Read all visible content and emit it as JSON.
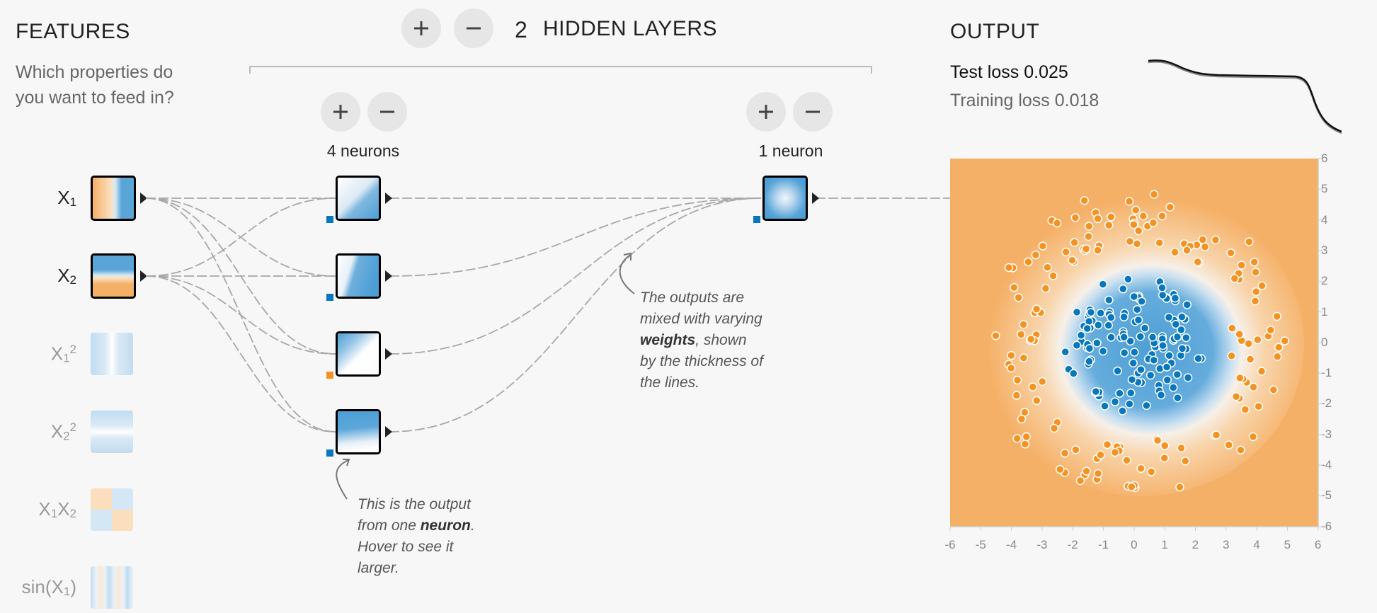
{
  "features": {
    "title": "FEATURES",
    "question": "Which properties do you want to feed in?",
    "items": [
      {
        "base": "X",
        "sub": "1",
        "sup": "",
        "base2": "",
        "sub2": "",
        "active": true
      },
      {
        "base": "X",
        "sub": "2",
        "sup": "",
        "base2": "",
        "sub2": "",
        "active": true
      },
      {
        "base": "X",
        "sub": "1",
        "sup": "2",
        "base2": "",
        "sub2": "",
        "active": false
      },
      {
        "base": "X",
        "sub": "2",
        "sup": "2",
        "base2": "",
        "sub2": "",
        "active": false
      },
      {
        "base": "X",
        "sub": "1",
        "sup": "",
        "base2": "X",
        "sub2": "2",
        "active": false
      },
      {
        "base": "sin(X",
        "sub": "1",
        "sup": "",
        "base2": ")",
        "sub2": "",
        "active": false
      }
    ]
  },
  "hidden": {
    "count": "2",
    "label": "HIDDEN LAYERS",
    "add_icon": "plus-icon",
    "remove_icon": "minus-icon",
    "layers": [
      {
        "neurons_label": "4 neurons"
      },
      {
        "neurons_label": "1 neuron"
      }
    ]
  },
  "annotations": {
    "neuron_note": [
      "This is the output",
      "from one ",
      "neuron",
      ".",
      "Hover to see it",
      "larger."
    ],
    "weights_note": [
      "The outputs are",
      "mixed with varying",
      "weights",
      ", shown",
      "by the thickness of",
      "the lines."
    ]
  },
  "output": {
    "title": "OUTPUT",
    "test_loss_label": "Test loss",
    "test_loss_value": "0.025",
    "train_loss_label": "Training loss",
    "train_loss_value": "0.018",
    "y_axis": [
      "6",
      "5",
      "4",
      "3",
      "2",
      "1",
      "0",
      "-1",
      "-2",
      "-3",
      "-4",
      "-5",
      "-6"
    ],
    "x_axis": [
      "-6",
      "-5",
      "-4",
      "-3",
      "-2",
      "-1",
      "0",
      "1",
      "2",
      "3",
      "4",
      "5",
      "6"
    ]
  },
  "colors": {
    "orange": "#f59322",
    "blue": "#0877bd",
    "bg_orange": "#f5b067",
    "bg_blue": "#5aa5d8"
  }
}
